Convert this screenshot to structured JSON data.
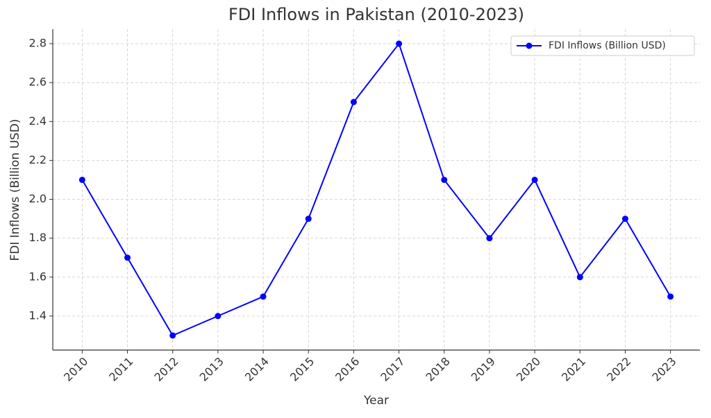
{
  "chart_data": {
    "type": "line",
    "title": "FDI Inflows in Pakistan (2010-2023)",
    "x_label": "Year",
    "y_label": "FDI Inflows (Billion USD)",
    "x": [
      2010,
      2011,
      2012,
      2013,
      2014,
      2015,
      2016,
      2017,
      2018,
      2019,
      2020,
      2021,
      2022,
      2023
    ],
    "series": [
      {
        "name": "FDI Inflows (Billion USD)",
        "color": "#0000ff",
        "values": [
          2.1,
          1.7,
          1.3,
          1.4,
          1.5,
          1.9,
          2.5,
          2.8,
          2.1,
          1.8,
          2.1,
          1.6,
          1.9,
          1.5
        ]
      }
    ],
    "xlim": [
      2009.35,
      2023.65
    ],
    "xticks": [
      2010,
      2011,
      2012,
      2013,
      2014,
      2015,
      2016,
      2017,
      2018,
      2019,
      2020,
      2021,
      2022,
      2023
    ],
    "ylim": [
      1.225,
      2.875
    ],
    "yticks": [
      1.4,
      1.6,
      1.8,
      {
        "value": 2,
        "label": "2.0"
      },
      2.2,
      2.4,
      2.6,
      2.8
    ],
    "grid": true,
    "legend": "upper right"
  }
}
